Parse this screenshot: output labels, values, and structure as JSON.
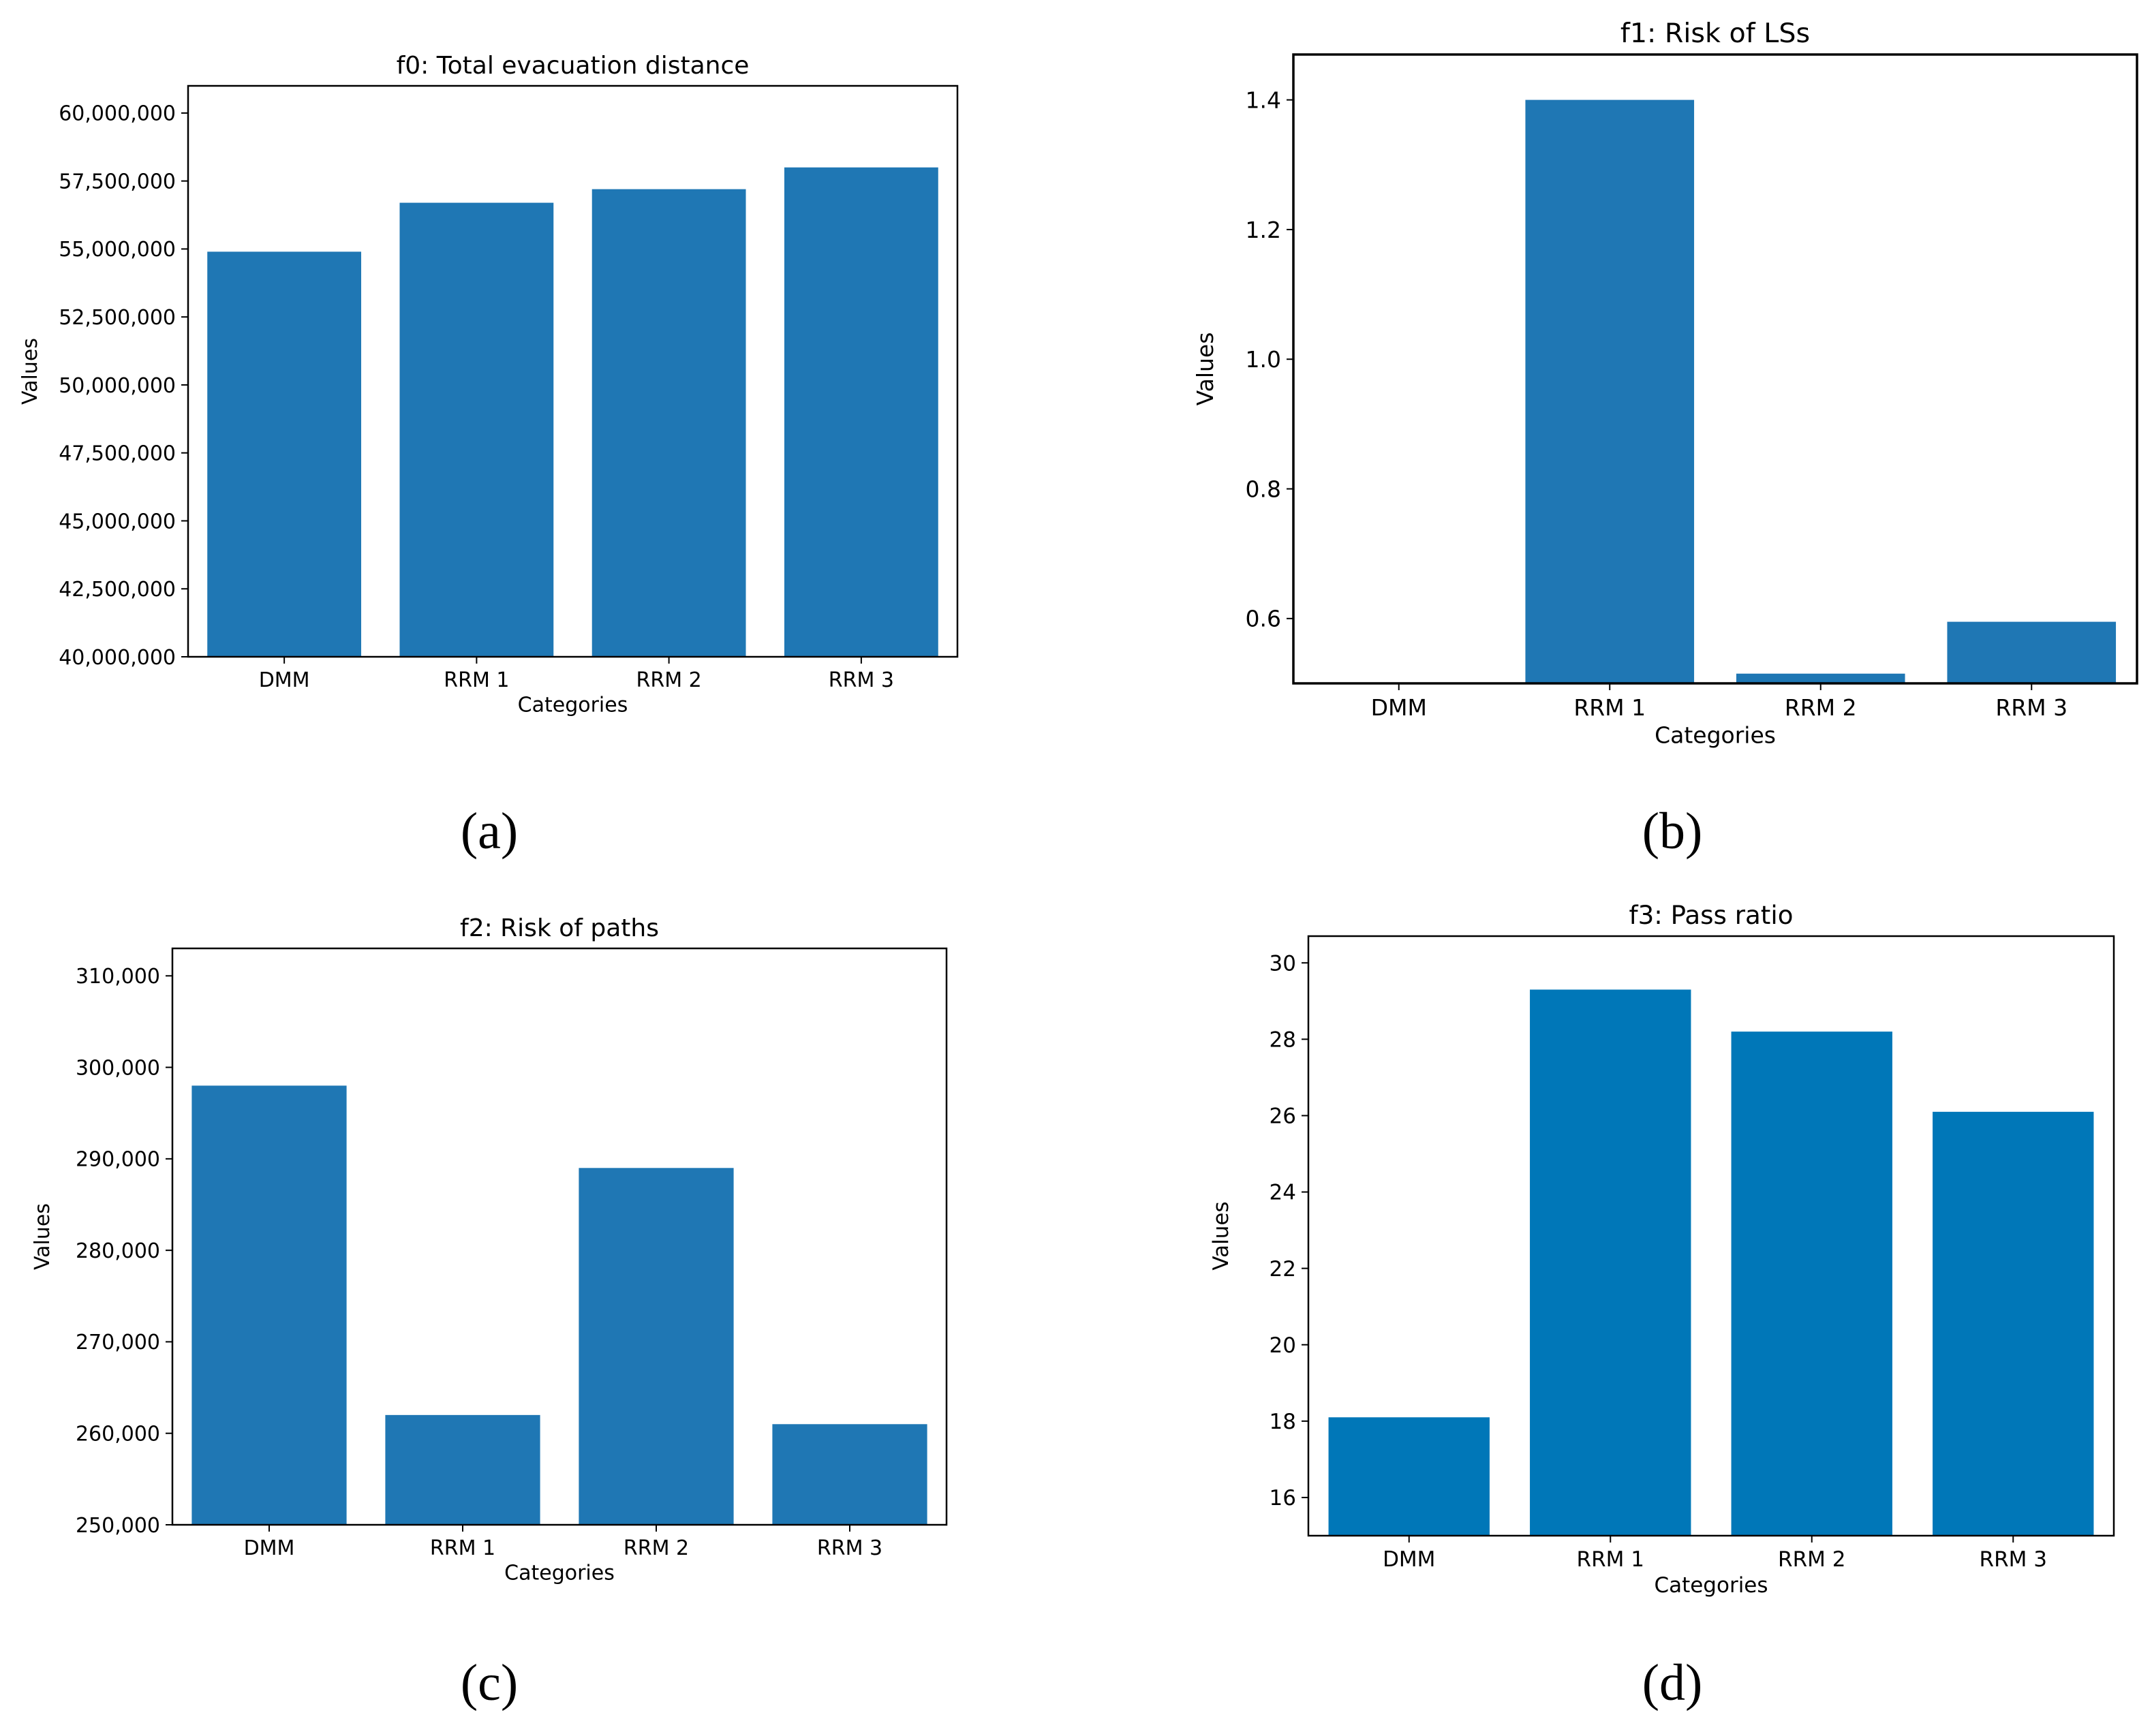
{
  "figure": {
    "panels": [
      {
        "key": "a",
        "label": "(a)"
      },
      {
        "key": "b",
        "label": "(b)"
      },
      {
        "key": "c",
        "label": "(c)"
      },
      {
        "key": "d",
        "label": "(d)"
      }
    ]
  },
  "chart_data": [
    {
      "type": "bar",
      "title": "f0: Total evacuation distance",
      "xlabel": "Categories",
      "ylabel": "Values",
      "categories": [
        "DMM",
        "RRM 1",
        "RRM 2",
        "RRM 3"
      ],
      "values": [
        54900000,
        56700000,
        57200000,
        58000000
      ],
      "ylim": [
        40000000,
        61000000
      ],
      "yticks": [
        40000000,
        42500000,
        45000000,
        47500000,
        50000000,
        52500000,
        55000000,
        57500000,
        60000000
      ],
      "ytick_labels": [
        "40,000,000",
        "42,500,000",
        "45,000,000",
        "47,500,000",
        "50,000,000",
        "52,500,000",
        "55,000,000",
        "57,500,000",
        "60,000,000"
      ],
      "color": "#1f77b4",
      "grid": false
    },
    {
      "type": "bar",
      "title": "f1: Risk of LSs",
      "xlabel": "Categories",
      "ylabel": "Values",
      "categories": [
        "DMM",
        "RRM 1",
        "RRM 2",
        "RRM 3"
      ],
      "values": [
        0.5,
        1.4,
        0.515,
        0.595
      ],
      "ylim": [
        0.5,
        1.47
      ],
      "yticks": [
        0.6,
        0.8,
        1.0,
        1.2,
        1.4
      ],
      "ytick_labels": [
        "0.6",
        "0.8",
        "1.0",
        "1.2",
        "1.4"
      ],
      "color": "#1f77b4",
      "grid": false
    },
    {
      "type": "bar",
      "title": "f2: Risk of paths",
      "xlabel": "Categories",
      "ylabel": "Values",
      "categories": [
        "DMM",
        "RRM 1",
        "RRM 2",
        "RRM 3"
      ],
      "values": [
        298000,
        262000,
        289000,
        261000
      ],
      "ylim": [
        250000,
        313000
      ],
      "yticks": [
        250000,
        260000,
        270000,
        280000,
        290000,
        300000,
        310000
      ],
      "ytick_labels": [
        "250,000",
        "260,000",
        "270,000",
        "280,000",
        "290,000",
        "300,000",
        "310,000"
      ],
      "color": "#1f77b4",
      "grid": false
    },
    {
      "type": "bar",
      "title": "f3: Pass ratio",
      "xlabel": "Categories",
      "ylabel": "Values",
      "categories": [
        "DMM",
        "RRM 1",
        "RRM 2",
        "RRM 3"
      ],
      "values": [
        18.1,
        29.3,
        28.2,
        26.1
      ],
      "ylim": [
        15,
        30.7
      ],
      "yticks": [
        16,
        18,
        20,
        22,
        24,
        26,
        28,
        30
      ],
      "ytick_labels": [
        "16",
        "18",
        "20",
        "22",
        "24",
        "26",
        "28",
        "30"
      ],
      "color": "#0077b8",
      "grid": false
    }
  ]
}
